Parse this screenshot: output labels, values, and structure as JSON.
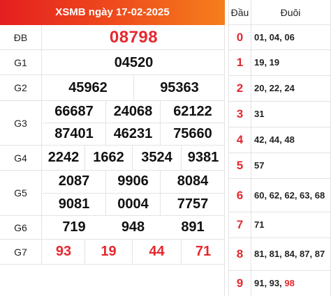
{
  "results": {
    "title": "XSMB ngày 17-02-2025",
    "rows": [
      {
        "label": "ĐB",
        "numbers": [
          "08798"
        ]
      },
      {
        "label": "G1",
        "numbers": [
          "04520"
        ]
      },
      {
        "label": "G2",
        "numbers": [
          "45962",
          "95363"
        ]
      },
      {
        "label": "G3",
        "numbers": [
          "66687",
          "24068",
          "62122",
          "87401",
          "46231",
          "75660"
        ]
      },
      {
        "label": "G4",
        "numbers": [
          "2242",
          "1662",
          "3524",
          "9381"
        ]
      },
      {
        "label": "G5",
        "numbers": [
          "2087",
          "9906",
          "8084",
          "9081",
          "0004",
          "7757"
        ]
      },
      {
        "label": "G6",
        "numbers": [
          "719",
          "948",
          "891"
        ]
      },
      {
        "label": "G7",
        "numbers": [
          "93",
          "19",
          "44",
          "71"
        ]
      }
    ],
    "highlight_color": "#e5282f",
    "header_gradient": [
      "#e41f1f",
      "#f57f1c"
    ]
  },
  "loto": {
    "head_label": "Đầu",
    "tail_label": "Đuôi",
    "rows": [
      {
        "head": "0",
        "tails": "01, 04, 06"
      },
      {
        "head": "1",
        "tails": "19, 19"
      },
      {
        "head": "2",
        "tails": "20, 22, 24"
      },
      {
        "head": "3",
        "tails": "31"
      },
      {
        "head": "4",
        "tails": "42, 44, 48"
      },
      {
        "head": "5",
        "tails": "57"
      },
      {
        "head": "6",
        "tails": "60, 62, 62, 63, 68"
      },
      {
        "head": "7",
        "tails": "71"
      },
      {
        "head": "8",
        "tails": "81, 81, 84, 87, 87"
      },
      {
        "head": "9",
        "tails": "91, 93, ",
        "tails_highlight": "98"
      }
    ]
  }
}
